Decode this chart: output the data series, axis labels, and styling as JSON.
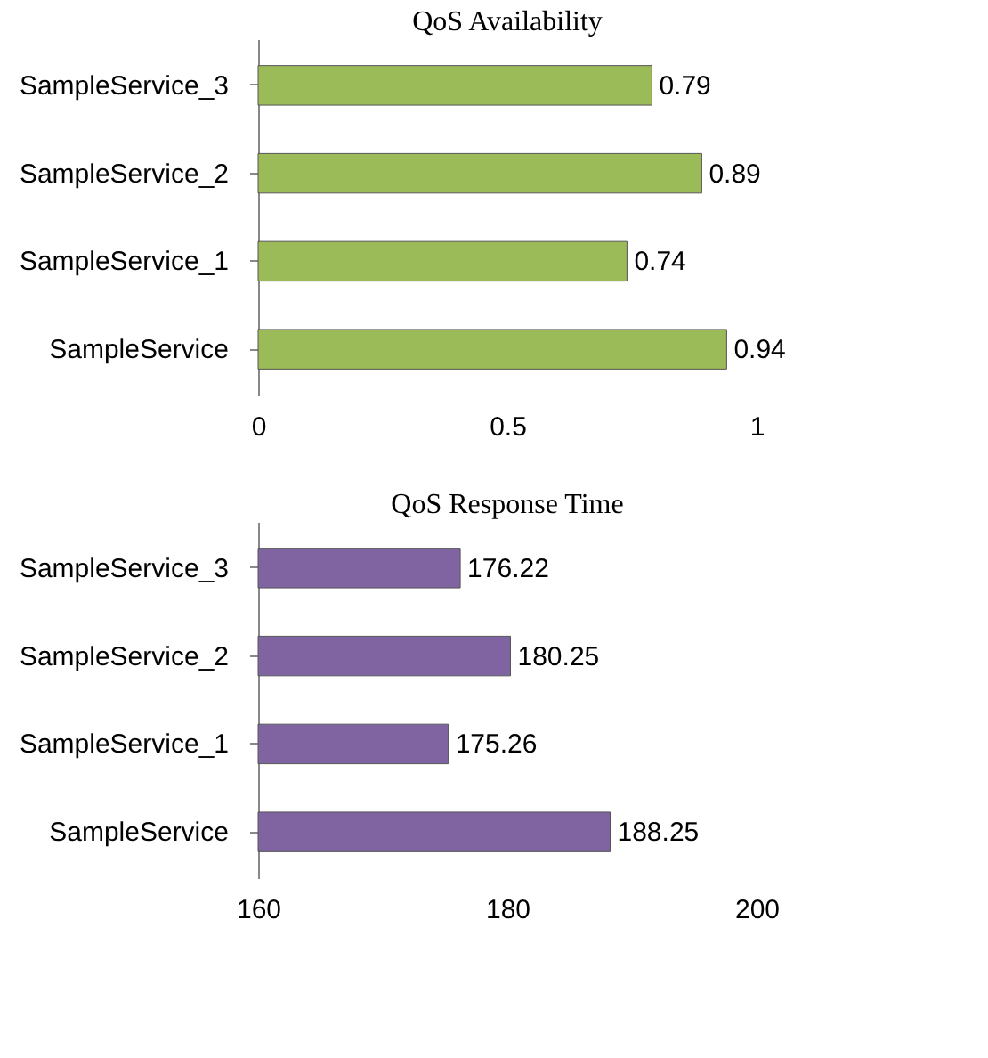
{
  "chart_data": [
    {
      "type": "bar",
      "orientation": "horizontal",
      "title": "QoS Availability",
      "categories": [
        "SampleService_3",
        "SampleService_2",
        "SampleService_1",
        "SampleService"
      ],
      "series": [
        {
          "color": "#9bbb59",
          "values": [
            0.79,
            0.89,
            0.74,
            0.94
          ]
        }
      ],
      "xlim": [
        0,
        1
      ],
      "xticks": [
        0,
        0.5,
        1
      ],
      "data_labels": true,
      "grid": false,
      "legend": false
    },
    {
      "type": "bar",
      "orientation": "horizontal",
      "title": "QoS Response Time",
      "categories": [
        "SampleService_3",
        "SampleService_2",
        "SampleService_1",
        "SampleService"
      ],
      "series": [
        {
          "color": "#8064a2",
          "values": [
            176.22,
            180.25,
            175.26,
            188.25
          ]
        }
      ],
      "xlim": [
        160,
        200
      ],
      "xticks": [
        160,
        180,
        200
      ],
      "data_labels": true,
      "grid": false,
      "legend": false
    }
  ]
}
